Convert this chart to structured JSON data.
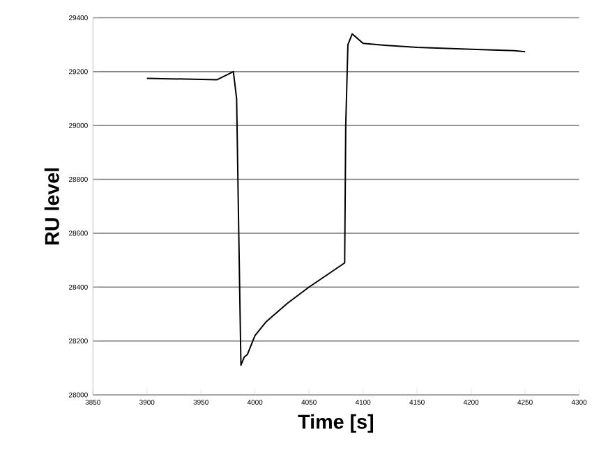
{
  "chart_data": {
    "type": "line",
    "xlabel": "Time [s]",
    "ylabel": "RU level",
    "x": [
      3900,
      3965,
      3980,
      3983,
      3985,
      3987,
      3990,
      3993,
      3997,
      4000,
      4010,
      4030,
      4050,
      4083,
      4084,
      4086,
      4090,
      4100,
      4120,
      4150,
      4200,
      4240,
      4250
    ],
    "values": [
      29175,
      29170,
      29200,
      29100,
      28600,
      28110,
      28140,
      28150,
      28190,
      28220,
      28270,
      28340,
      28400,
      28490,
      29000,
      29300,
      29340,
      29305,
      29298,
      29290,
      29283,
      29278,
      29274
    ],
    "color": "#000000",
    "xlim": [
      3850,
      4300
    ],
    "ylim": [
      28000,
      29400
    ],
    "xticks": [
      3850,
      3900,
      3950,
      4000,
      4050,
      4100,
      4150,
      4200,
      4250,
      4300
    ],
    "yticks": [
      28000,
      28200,
      28400,
      28600,
      28800,
      29000,
      29200,
      29400
    ],
    "grid": "y",
    "marker": "none",
    "line_style": "solid"
  }
}
